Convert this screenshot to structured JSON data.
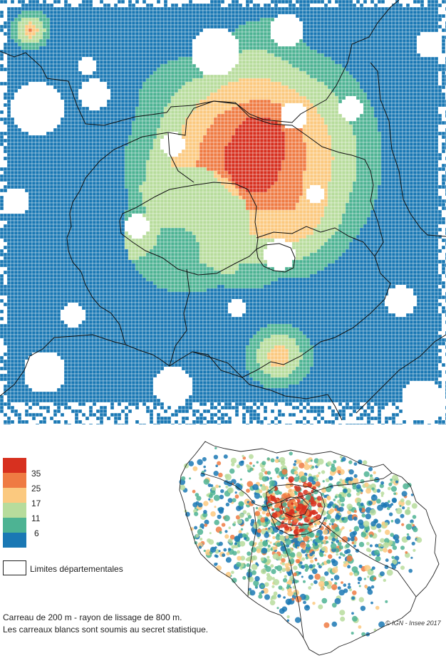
{
  "legend": {
    "colors": [
      "#d7301f",
      "#ef7b43",
      "#fbc97f",
      "#b7dc9c",
      "#4db393",
      "#1a78b4"
    ],
    "thresholds": [
      "35",
      "25",
      "17",
      "11",
      "6"
    ],
    "border_label": "Limites départementales"
  },
  "notes": {
    "line1": "Carreau de 200 m - rayon de lissage de 800 m.",
    "line2": "Les carreaux blancs sont soumis au secret statistique."
  },
  "credit": "© IGN - Insee 2017",
  "style": {
    "grid_line_color": "#ffffff",
    "border_color": "#111111"
  }
}
